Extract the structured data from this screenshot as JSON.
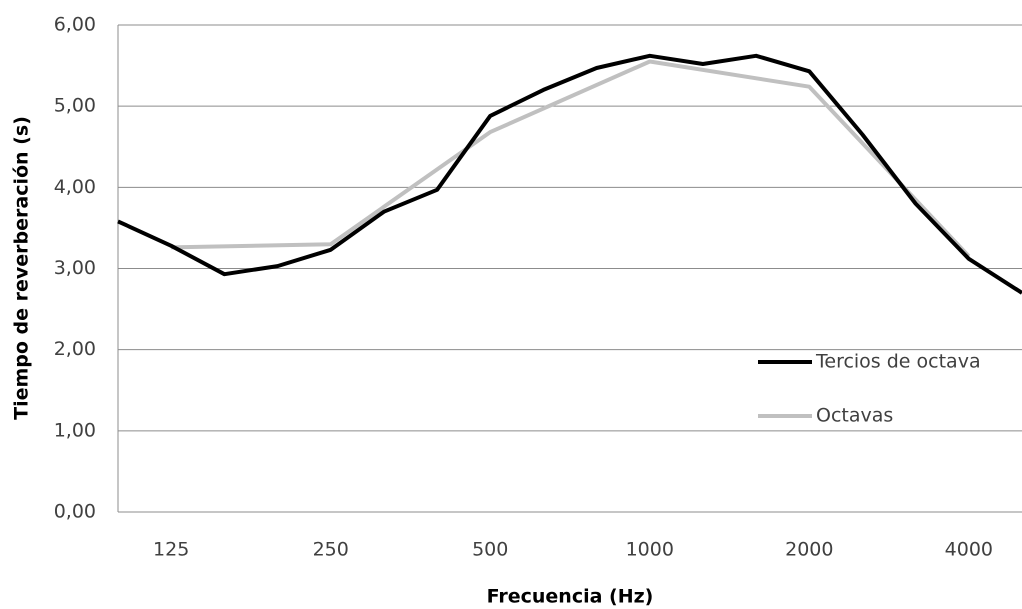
{
  "chart_data": {
    "type": "line",
    "xlabel": "Frecuencia (Hz)",
    "ylabel": "Tiempo de reverberación (s)",
    "categories": [
      null,
      "125",
      null,
      null,
      "250",
      null,
      null,
      "500",
      null,
      null,
      "1000",
      null,
      null,
      "2000",
      null,
      null,
      "4000",
      null
    ],
    "series": [
      {
        "name": "Tercios de octava",
        "color": "#000000",
        "values": [
          3.58,
          3.28,
          2.93,
          3.03,
          3.23,
          3.7,
          3.97,
          4.88,
          5.2,
          5.47,
          5.62,
          5.52,
          5.62,
          5.43,
          4.65,
          3.8,
          3.12,
          2.7
        ]
      },
      {
        "name": "Octavas",
        "color": "#c0c0c0",
        "x": [
          "125",
          "250",
          "500",
          "1000",
          "2000",
          "4000"
        ],
        "values": [
          3.26,
          3.3,
          4.68,
          5.55,
          5.24,
          3.15
        ]
      }
    ],
    "ylim": [
      0,
      6
    ],
    "yticks": [
      {
        "value": 0,
        "label": "0,00"
      },
      {
        "value": 1,
        "label": "1,00"
      },
      {
        "value": 2,
        "label": "2,00"
      },
      {
        "value": 3,
        "label": "3,00"
      },
      {
        "value": 4,
        "label": "4,00"
      },
      {
        "value": 5,
        "label": "5,00"
      },
      {
        "value": 6,
        "label": "6,00"
      }
    ],
    "grid": true,
    "legend": "right"
  }
}
